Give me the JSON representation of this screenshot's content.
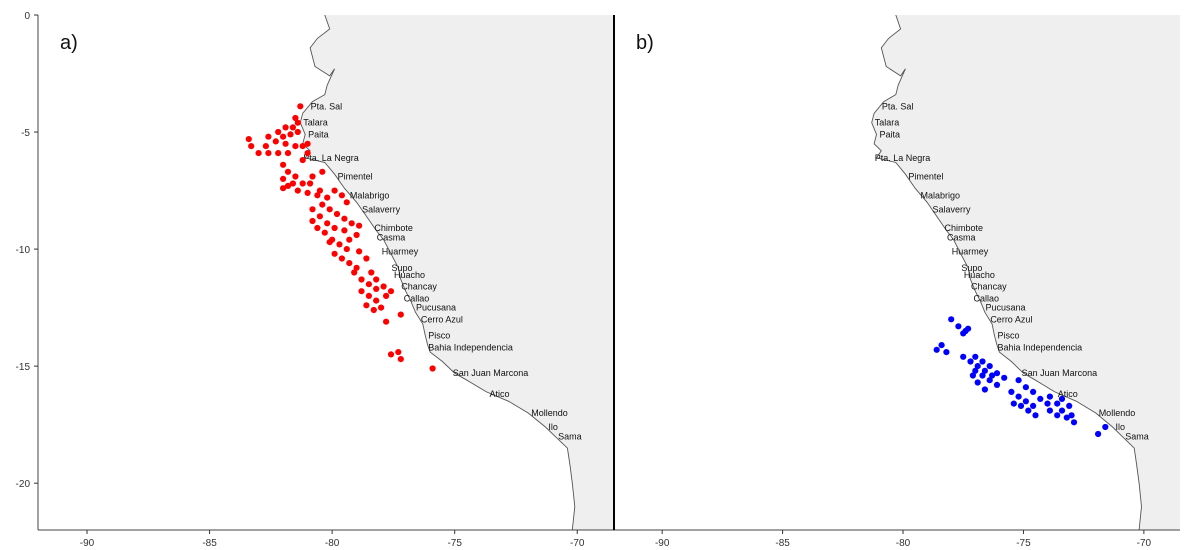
{
  "figure": {
    "panels": [
      {
        "id": "a",
        "label": "a)",
        "point_color": "#ff0000"
      },
      {
        "id": "b",
        "label": "b)",
        "point_color": "#0000ff"
      }
    ],
    "colors": {
      "land": "#efefef",
      "coast": "#555555",
      "sea": "#ffffff",
      "frame": "#000000"
    }
  },
  "chart_data": {
    "type": "scatter",
    "xlim": [
      -92,
      -68.5
    ],
    "ylim": [
      -22,
      0
    ],
    "x_ticks": [
      "-90",
      "-85",
      "-80",
      "-75",
      "-70"
    ],
    "y_ticks": [
      "0",
      "-5",
      "-10",
      "-15",
      "-20"
    ],
    "x_tick_values": [
      -90,
      -85,
      -80,
      -75,
      -70
    ],
    "y_tick_values": [
      0,
      -5,
      -10,
      -15,
      -20
    ],
    "coastline": [
      [
        -80.3,
        0.0
      ],
      [
        -80.1,
        -0.6
      ],
      [
        -80.6,
        -1.0
      ],
      [
        -80.9,
        -1.4
      ],
      [
        -80.7,
        -2.2
      ],
      [
        -80.1,
        -2.6
      ],
      [
        -79.9,
        -2.3
      ],
      [
        -80.2,
        -3.0
      ],
      [
        -80.3,
        -3.4
      ],
      [
        -80.8,
        -3.7
      ],
      [
        -81.2,
        -4.2
      ],
      [
        -81.3,
        -4.6
      ],
      [
        -81.1,
        -5.1
      ],
      [
        -81.2,
        -5.5
      ],
      [
        -80.9,
        -5.8
      ],
      [
        -81.1,
        -6.1
      ],
      [
        -80.3,
        -6.3
      ],
      [
        -79.9,
        -6.8
      ],
      [
        -79.5,
        -7.4
      ],
      [
        -79.0,
        -8.0
      ],
      [
        -78.6,
        -8.6
      ],
      [
        -78.2,
        -9.2
      ],
      [
        -77.9,
        -9.6
      ],
      [
        -77.6,
        -10.2
      ],
      [
        -77.3,
        -10.8
      ],
      [
        -77.2,
        -11.3
      ],
      [
        -77.0,
        -11.8
      ],
      [
        -76.8,
        -12.2
      ],
      [
        -76.6,
        -12.7
      ],
      [
        -76.3,
        -13.2
      ],
      [
        -76.2,
        -13.7
      ],
      [
        -76.1,
        -14.1
      ],
      [
        -76.0,
        -14.4
      ],
      [
        -75.5,
        -14.8
      ],
      [
        -75.0,
        -15.3
      ],
      [
        -74.5,
        -15.6
      ],
      [
        -73.7,
        -16.1
      ],
      [
        -72.8,
        -16.5
      ],
      [
        -72.0,
        -17.0
      ],
      [
        -71.3,
        -17.6
      ],
      [
        -70.9,
        -18.0
      ],
      [
        -70.4,
        -18.5
      ],
      [
        -70.3,
        -19.2
      ],
      [
        -70.2,
        -20.0
      ],
      [
        -70.1,
        -21.0
      ],
      [
        -70.2,
        -22.0
      ]
    ],
    "ports": [
      {
        "name": "Pta. Sal",
        "lon": -81.0,
        "lat": -3.9
      },
      {
        "name": "Talara",
        "lon": -81.3,
        "lat": -4.6
      },
      {
        "name": "Paita",
        "lon": -81.1,
        "lat": -5.1
      },
      {
        "name": "Pta. La Negra",
        "lon": -81.3,
        "lat": -6.1
      },
      {
        "name": "Pimentel",
        "lon": -79.9,
        "lat": -6.9
      },
      {
        "name": "Malabrigo",
        "lon": -79.4,
        "lat": -7.7
      },
      {
        "name": "Salaverry",
        "lon": -78.9,
        "lat": -8.3
      },
      {
        "name": "Chimbote",
        "lon": -78.4,
        "lat": -9.1
      },
      {
        "name": "Casma",
        "lon": -78.3,
        "lat": -9.5
      },
      {
        "name": "Huarmey",
        "lon": -78.1,
        "lat": -10.1
      },
      {
        "name": "Supo",
        "lon": -77.7,
        "lat": -10.8
      },
      {
        "name": "Huacho",
        "lon": -77.6,
        "lat": -11.1
      },
      {
        "name": "Chancay",
        "lon": -77.3,
        "lat": -11.6
      },
      {
        "name": "Callao",
        "lon": -77.2,
        "lat": -12.1
      },
      {
        "name": "Pucusana",
        "lon": -76.7,
        "lat": -12.5
      },
      {
        "name": "Cerro Azul",
        "lon": -76.5,
        "lat": -13.0
      },
      {
        "name": "Pisco",
        "lon": -76.2,
        "lat": -13.7
      },
      {
        "name": "Bahia Independencia",
        "lon": -76.2,
        "lat": -14.2
      },
      {
        "name": "San Juan Marcona",
        "lon": -75.2,
        "lat": -15.3
      },
      {
        "name": "Atico",
        "lon": -73.7,
        "lat": -16.2
      },
      {
        "name": "Mollendo",
        "lon": -72.0,
        "lat": -17.0
      },
      {
        "name": "Ilo",
        "lon": -71.3,
        "lat": -17.6
      },
      {
        "name": "Sama",
        "lon": -70.9,
        "lat": -18.0
      }
    ],
    "series": [
      {
        "panel": "a",
        "points": [
          [
            -81.3,
            -3.9
          ],
          [
            -81.5,
            -4.4
          ],
          [
            -81.4,
            -4.6
          ],
          [
            -81.6,
            -4.8
          ],
          [
            -81.9,
            -4.8
          ],
          [
            -82.2,
            -5.0
          ],
          [
            -82.0,
            -5.2
          ],
          [
            -81.7,
            -5.1
          ],
          [
            -81.4,
            -5.0
          ],
          [
            -82.6,
            -5.2
          ],
          [
            -83.4,
            -5.3
          ],
          [
            -83.3,
            -5.6
          ],
          [
            -83.0,
            -5.9
          ],
          [
            -82.6,
            -5.9
          ],
          [
            -82.2,
            -5.9
          ],
          [
            -81.8,
            -5.9
          ],
          [
            -81.5,
            -5.6
          ],
          [
            -81.2,
            -5.6
          ],
          [
            -81.0,
            -5.5
          ],
          [
            -81.9,
            -5.5
          ],
          [
            -82.3,
            -5.4
          ],
          [
            -82.7,
            -5.6
          ],
          [
            -81.0,
            -5.9
          ],
          [
            -81.2,
            -6.2
          ],
          [
            -82.0,
            -6.4
          ],
          [
            -81.8,
            -6.7
          ],
          [
            -81.5,
            -6.9
          ],
          [
            -82.0,
            -7.0
          ],
          [
            -81.8,
            -7.3
          ],
          [
            -81.4,
            -7.5
          ],
          [
            -81.0,
            -7.6
          ],
          [
            -80.6,
            -7.7
          ],
          [
            -80.2,
            -7.8
          ],
          [
            -81.6,
            -7.2
          ],
          [
            -81.2,
            -7.2
          ],
          [
            -80.8,
            -6.9
          ],
          [
            -80.4,
            -6.7
          ],
          [
            -82.0,
            -7.4
          ],
          [
            -80.9,
            -7.2
          ],
          [
            -80.5,
            -7.5
          ],
          [
            -79.9,
            -7.5
          ],
          [
            -79.6,
            -7.7
          ],
          [
            -79.4,
            -8.0
          ],
          [
            -80.4,
            -8.1
          ],
          [
            -80.1,
            -8.3
          ],
          [
            -79.8,
            -8.5
          ],
          [
            -79.5,
            -8.7
          ],
          [
            -79.2,
            -8.9
          ],
          [
            -78.9,
            -9.0
          ],
          [
            -80.8,
            -8.3
          ],
          [
            -80.5,
            -8.6
          ],
          [
            -80.2,
            -8.9
          ],
          [
            -79.9,
            -9.1
          ],
          [
            -80.8,
            -8.8
          ],
          [
            -80.6,
            -9.1
          ],
          [
            -80.3,
            -9.3
          ],
          [
            -80.0,
            -9.6
          ],
          [
            -79.7,
            -9.8
          ],
          [
            -79.4,
            -10.0
          ],
          [
            -79.9,
            -10.2
          ],
          [
            -79.6,
            -10.4
          ],
          [
            -79.3,
            -10.6
          ],
          [
            -79.0,
            -10.8
          ],
          [
            -78.9,
            -10.1
          ],
          [
            -78.6,
            -10.4
          ],
          [
            -79.1,
            -11.0
          ],
          [
            -78.8,
            -11.3
          ],
          [
            -78.5,
            -11.5
          ],
          [
            -78.2,
            -11.7
          ],
          [
            -78.8,
            -11.8
          ],
          [
            -78.5,
            -12.0
          ],
          [
            -78.2,
            -12.2
          ],
          [
            -77.8,
            -12.0
          ],
          [
            -78.6,
            -12.4
          ],
          [
            -78.3,
            -12.6
          ],
          [
            -78.4,
            -11.0
          ],
          [
            -78.2,
            -11.3
          ],
          [
            -77.9,
            -11.6
          ],
          [
            -77.6,
            -11.8
          ],
          [
            -78.0,
            -12.5
          ],
          [
            -77.8,
            -13.1
          ],
          [
            -77.2,
            -12.8
          ],
          [
            -77.6,
            -14.5
          ],
          [
            -77.3,
            -14.4
          ],
          [
            -77.2,
            -14.7
          ],
          [
            -75.9,
            -15.1
          ],
          [
            -79.0,
            -9.4
          ],
          [
            -79.5,
            -9.2
          ],
          [
            -80.1,
            -9.7
          ],
          [
            -79.3,
            -9.6
          ]
        ]
      },
      {
        "panel": "b",
        "points": [
          [
            -78.0,
            -13.0
          ],
          [
            -77.7,
            -13.3
          ],
          [
            -77.4,
            -13.5
          ],
          [
            -77.3,
            -13.4
          ],
          [
            -77.5,
            -13.6
          ],
          [
            -78.4,
            -14.1
          ],
          [
            -78.6,
            -14.3
          ],
          [
            -78.2,
            -14.4
          ],
          [
            -77.5,
            -14.6
          ],
          [
            -77.2,
            -14.8
          ],
          [
            -76.9,
            -15.0
          ],
          [
            -76.6,
            -15.2
          ],
          [
            -76.3,
            -15.4
          ],
          [
            -77.0,
            -14.6
          ],
          [
            -76.7,
            -14.8
          ],
          [
            -76.4,
            -15.0
          ],
          [
            -76.1,
            -15.3
          ],
          [
            -75.8,
            -15.5
          ],
          [
            -77.0,
            -15.2
          ],
          [
            -76.7,
            -15.4
          ],
          [
            -76.4,
            -15.6
          ],
          [
            -76.1,
            -15.8
          ],
          [
            -76.6,
            -16.0
          ],
          [
            -76.9,
            -15.7
          ],
          [
            -77.1,
            -15.4
          ],
          [
            -75.5,
            -16.1
          ],
          [
            -75.2,
            -16.3
          ],
          [
            -74.9,
            -16.5
          ],
          [
            -74.6,
            -16.7
          ],
          [
            -75.2,
            -15.6
          ],
          [
            -74.9,
            -15.9
          ],
          [
            -74.6,
            -16.1
          ],
          [
            -74.3,
            -16.4
          ],
          [
            -74.0,
            -16.6
          ],
          [
            -75.4,
            -16.6
          ],
          [
            -75.1,
            -16.7
          ],
          [
            -74.8,
            -16.9
          ],
          [
            -74.5,
            -17.1
          ],
          [
            -73.9,
            -16.3
          ],
          [
            -73.6,
            -16.6
          ],
          [
            -73.4,
            -16.9
          ],
          [
            -73.2,
            -17.2
          ],
          [
            -73.6,
            -17.1
          ],
          [
            -73.9,
            -16.9
          ],
          [
            -73.4,
            -16.4
          ],
          [
            -73.1,
            -16.7
          ],
          [
            -73.0,
            -17.1
          ],
          [
            -72.9,
            -17.4
          ],
          [
            -71.9,
            -17.9
          ],
          [
            -71.6,
            -17.6
          ]
        ]
      }
    ]
  }
}
